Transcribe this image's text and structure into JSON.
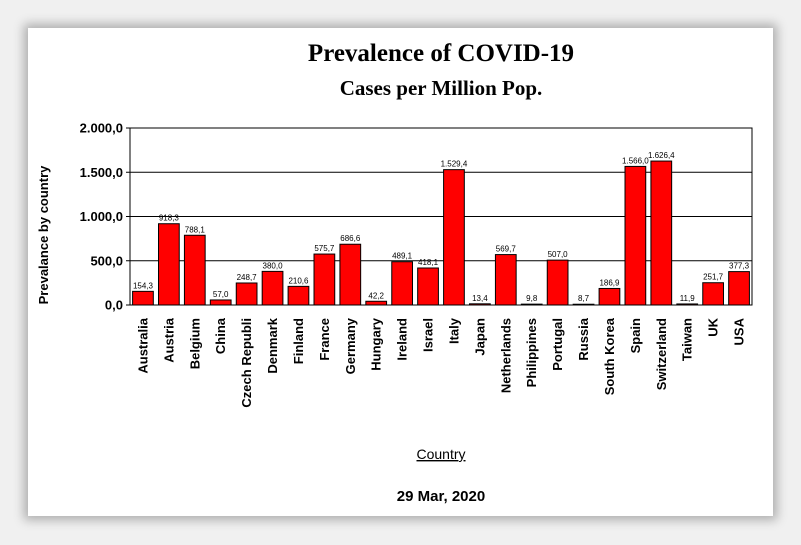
{
  "chart_data": {
    "type": "bar",
    "title": "Prevalence of COVID-19",
    "subtitle": "Cases per Million Pop.",
    "xlabel": "Country",
    "ylabel": "Prevalance by country",
    "footer": "29 Mar, 2020",
    "ylim": [
      0,
      2000
    ],
    "ytick_values": [
      0,
      500,
      1000,
      1500,
      2000
    ],
    "ytick_labels": [
      "0,0",
      "500,0",
      "1.000,0",
      "1.500,0",
      "2.000,0"
    ],
    "grid": true,
    "bar_color": "#ff0000",
    "categories": [
      "Australia",
      "Austria",
      "Belgium",
      "China",
      "Czech Republi",
      "Denmark",
      "Finland",
      "France",
      "Germany",
      "Hungary",
      "Ireland",
      "Israel",
      "Italy",
      "Japan",
      "Netherlands",
      "Philippines",
      "Portugal",
      "Russia",
      "South Korea",
      "Spain",
      "Switzerland",
      "Taiwan",
      "UK",
      "USA"
    ],
    "values": [
      154.3,
      918.3,
      788.1,
      57.0,
      248.7,
      380.0,
      210.6,
      575.7,
      686.6,
      42.2,
      489.1,
      418.1,
      1529.4,
      13.4,
      569.7,
      9.8,
      507.0,
      8.7,
      186.9,
      1566.0,
      1626.4,
      11.9,
      251.7,
      377.3
    ],
    "value_labels": [
      "154,3",
      "918,3",
      "788,1",
      "57,0",
      "248,7",
      "380,0",
      "210,6",
      "575,7",
      "686,6",
      "42,2",
      "489,1",
      "418,1",
      "1.529,4",
      "13,4",
      "569,7",
      "9,8",
      "507,0",
      "8,7",
      "186,9",
      "1.566,0",
      "1.626,4",
      "11,9",
      "251,7",
      "377,3"
    ]
  }
}
